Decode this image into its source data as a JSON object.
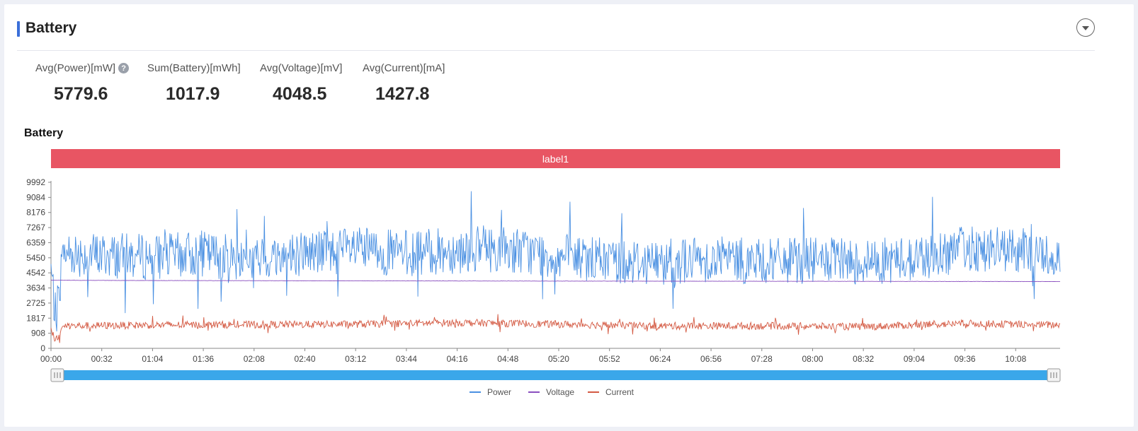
{
  "panel": {
    "title": "Battery"
  },
  "stats": [
    {
      "label": "Avg(Power)[mW]",
      "value": "5779.6",
      "has_help": true
    },
    {
      "label": "Sum(Battery)[mWh]",
      "value": "1017.9"
    },
    {
      "label": "Avg(Voltage)[mV]",
      "value": "4048.5"
    },
    {
      "label": "Avg(Current)[mA]",
      "value": "1427.8"
    }
  ],
  "chart_title": "Battery",
  "band_label": "label1",
  "colors": {
    "power": "#4a90e2",
    "voltage": "#8a4fbf",
    "current": "#d45a43",
    "band": "#e85563",
    "slider": "#3aa7ea"
  },
  "chart_data": {
    "type": "line",
    "y_ticks": [
      "0",
      "908",
      "1817",
      "2725",
      "3634",
      "4542",
      "5450",
      "6359",
      "7267",
      "8176",
      "9084",
      "9992"
    ],
    "ylim": [
      0,
      9992
    ],
    "x_ticks": [
      "00:00",
      "00:32",
      "01:04",
      "01:36",
      "02:08",
      "02:40",
      "03:12",
      "03:44",
      "04:16",
      "04:48",
      "05:20",
      "05:52",
      "06:24",
      "06:56",
      "07:28",
      "08:00",
      "08:32",
      "09:04",
      "09:36",
      "10:08"
    ],
    "x_range_seconds": [
      0,
      636
    ],
    "series": [
      {
        "name": "Power",
        "mean": 5780,
        "points": [
          [
            0,
            4800
          ],
          [
            3,
            1700
          ],
          [
            8,
            5800
          ],
          [
            30,
            5600
          ],
          [
            64,
            5500
          ],
          [
            96,
            5700
          ],
          [
            128,
            5300
          ],
          [
            160,
            5800
          ],
          [
            192,
            5900
          ],
          [
            224,
            5700
          ],
          [
            256,
            5900
          ],
          [
            288,
            6000
          ],
          [
            320,
            5500
          ],
          [
            352,
            5300
          ],
          [
            384,
            5200
          ],
          [
            416,
            5400
          ],
          [
            448,
            5200
          ],
          [
            480,
            5300
          ],
          [
            512,
            5200
          ],
          [
            544,
            5400
          ],
          [
            576,
            6000
          ],
          [
            608,
            5900
          ],
          [
            636,
            5500
          ]
        ]
      },
      {
        "name": "Voltage",
        "mean": 4048,
        "points": [
          [
            0,
            4100
          ],
          [
            60,
            4080
          ],
          [
            200,
            4060
          ],
          [
            400,
            4040
          ],
          [
            636,
            4020
          ]
        ]
      },
      {
        "name": "Current",
        "mean": 1428,
        "points": [
          [
            0,
            1200
          ],
          [
            3,
            450
          ],
          [
            8,
            1350
          ],
          [
            64,
            1400
          ],
          [
            192,
            1450
          ],
          [
            256,
            1550
          ],
          [
            320,
            1450
          ],
          [
            384,
            1350
          ],
          [
            448,
            1350
          ],
          [
            512,
            1300
          ],
          [
            576,
            1500
          ],
          [
            636,
            1400
          ]
        ]
      }
    ],
    "legend": [
      "Power",
      "Voltage",
      "Current"
    ],
    "legend_placement": "bottom-center",
    "grid": false
  }
}
